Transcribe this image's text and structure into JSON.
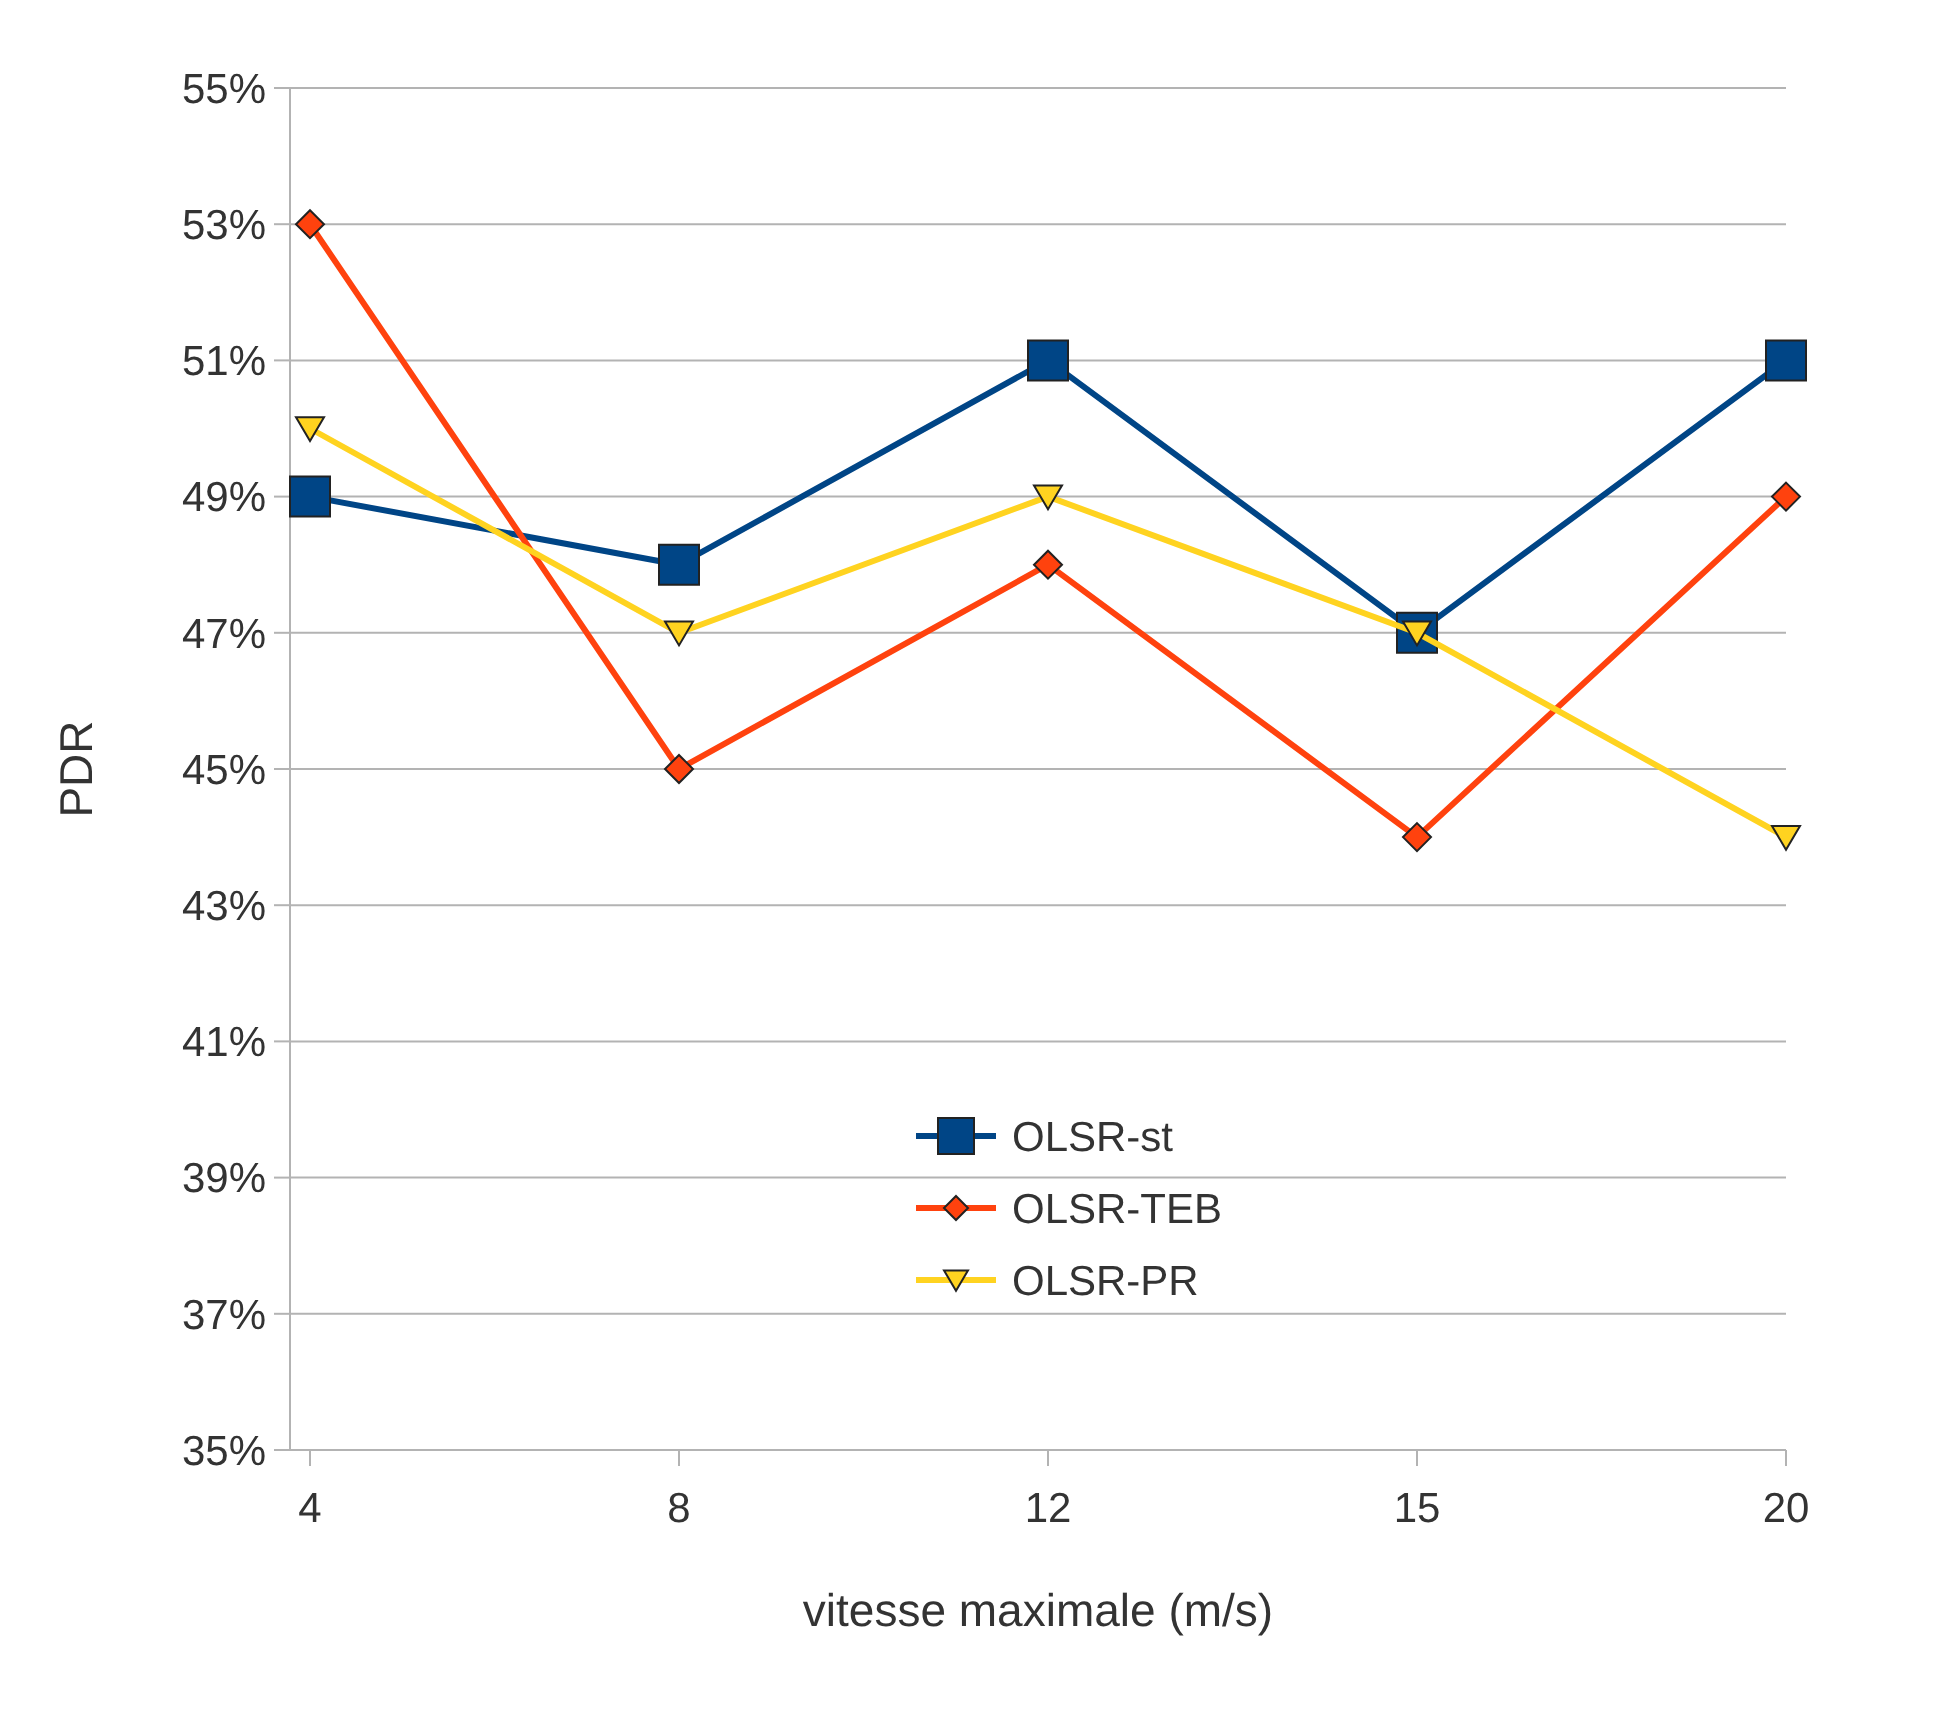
{
  "chart_data": {
    "type": "line",
    "xlabel": "vitesse maximale (m/s)",
    "ylabel": "PDR",
    "categories": [
      "4",
      "8",
      "12",
      "15",
      "20"
    ],
    "series": [
      {
        "name": "OLSR-st",
        "color": "#004586",
        "marker": "square",
        "values": [
          49,
          48,
          51,
          47,
          51
        ]
      },
      {
        "name": "OLSR-TEB",
        "color": "#ff420e",
        "marker": "diamond",
        "values": [
          53,
          45,
          48,
          44,
          49
        ]
      },
      {
        "name": "OLSR-PR",
        "color": "#ffd320",
        "marker": "triangle",
        "values": [
          50,
          47,
          49,
          47,
          44
        ]
      }
    ],
    "ylim": [
      35,
      55
    ],
    "yticks": [
      {
        "value": 35,
        "label": "35%"
      },
      {
        "value": 37,
        "label": "37%"
      },
      {
        "value": 39,
        "label": "39%"
      },
      {
        "value": 41,
        "label": "41%"
      },
      {
        "value": 43,
        "label": "43%"
      },
      {
        "value": 45,
        "label": "45%"
      },
      {
        "value": 47,
        "label": "47%"
      },
      {
        "value": 49,
        "label": "49%"
      },
      {
        "value": 51,
        "label": "51%"
      },
      {
        "value": 53,
        "label": "53%"
      },
      {
        "value": 55,
        "label": "55%"
      }
    ],
    "grid": "y",
    "legend": "bottom",
    "line_style": "solid"
  }
}
